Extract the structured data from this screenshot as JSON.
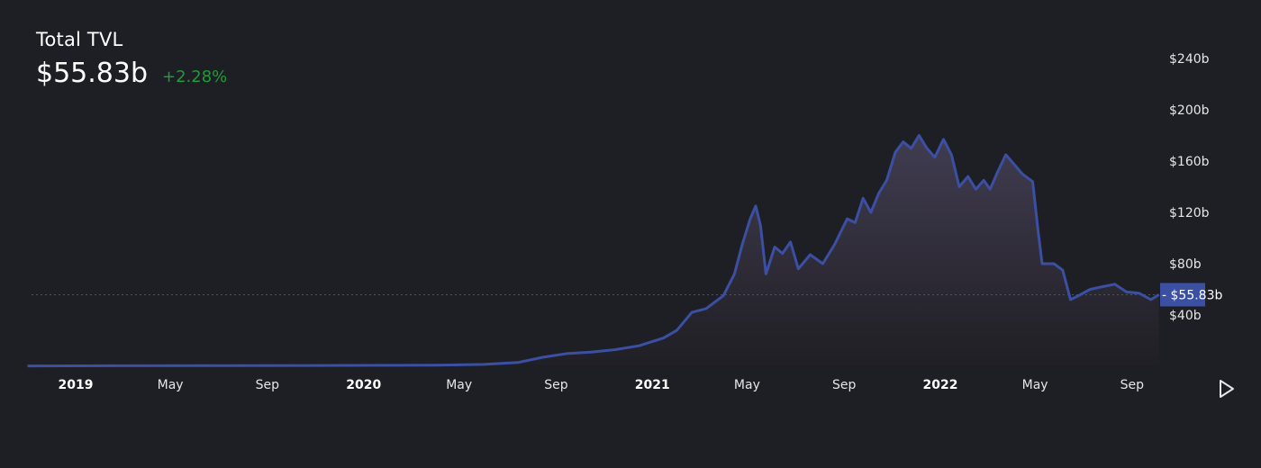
{
  "header": {
    "title": "Total TVL",
    "value": "$55.83b",
    "change": "+2.28%"
  },
  "colors": {
    "background": "#1e1f24",
    "line": "#3b4fa3",
    "change_positive": "#1e9b3a",
    "current_marker": "#3b4fa3"
  },
  "controls": {
    "play_icon": "play-triangle-icon"
  },
  "chart_data": {
    "type": "area",
    "title": "Total TVL",
    "xlabel": "",
    "ylabel": "",
    "ylim": [
      0,
      260
    ],
    "y_unit": "billion USD",
    "ytick_values": [
      40,
      80,
      120,
      160,
      200,
      240
    ],
    "ytick_labels": [
      "$40b",
      "$80b",
      "$120b",
      "$160b",
      "$200b",
      "$240b"
    ],
    "xtick_values": [
      "2019-01-01",
      "2019-05-01",
      "2019-09-01",
      "2020-01-01",
      "2020-05-01",
      "2020-09-01",
      "2021-01-01",
      "2021-05-01",
      "2021-09-01",
      "2022-01-01",
      "2022-05-01",
      "2022-09-01"
    ],
    "xtick_labels": [
      "2019",
      "May",
      "Sep",
      "2020",
      "May",
      "Sep",
      "2021",
      "May",
      "Sep",
      "2022",
      "May",
      "Sep"
    ],
    "year_ticks": [
      "2019",
      "2020",
      "2021",
      "2022"
    ],
    "current_value": 55.83,
    "current_label": "$55.83b",
    "series": [
      {
        "points": [
          [
            "2018-11-01",
            0.3
          ],
          [
            "2019-03-01",
            0.4
          ],
          [
            "2019-07-01",
            0.5
          ],
          [
            "2019-11-01",
            0.6
          ],
          [
            "2020-02-01",
            0.8
          ],
          [
            "2020-04-01",
            0.9
          ],
          [
            "2020-06-01",
            1.5
          ],
          [
            "2020-07-15",
            3
          ],
          [
            "2020-08-15",
            7
          ],
          [
            "2020-09-15",
            10
          ],
          [
            "2020-10-15",
            11
          ],
          [
            "2020-11-15",
            13
          ],
          [
            "2020-12-15",
            16
          ],
          [
            "2021-01-15",
            22
          ],
          [
            "2021-02-01",
            28
          ],
          [
            "2021-02-20",
            42
          ],
          [
            "2021-03-10",
            45
          ],
          [
            "2021-04-01",
            55
          ],
          [
            "2021-04-15",
            72
          ],
          [
            "2021-04-25",
            95
          ],
          [
            "2021-05-05",
            115
          ],
          [
            "2021-05-12",
            125
          ],
          [
            "2021-05-18",
            110
          ],
          [
            "2021-05-25",
            72
          ],
          [
            "2021-06-05",
            93
          ],
          [
            "2021-06-15",
            88
          ],
          [
            "2021-06-25",
            97
          ],
          [
            "2021-07-05",
            76
          ],
          [
            "2021-07-20",
            87
          ],
          [
            "2021-08-05",
            80
          ],
          [
            "2021-08-20",
            95
          ],
          [
            "2021-09-05",
            115
          ],
          [
            "2021-09-15",
            112
          ],
          [
            "2021-09-25",
            131
          ],
          [
            "2021-10-05",
            120
          ],
          [
            "2021-10-15",
            135
          ],
          [
            "2021-10-25",
            145
          ],
          [
            "2021-11-05",
            167
          ],
          [
            "2021-11-15",
            175
          ],
          [
            "2021-11-25",
            170
          ],
          [
            "2021-12-05",
            180
          ],
          [
            "2021-12-15",
            170
          ],
          [
            "2021-12-25",
            163
          ],
          [
            "2022-01-05",
            177
          ],
          [
            "2022-01-15",
            165
          ],
          [
            "2022-01-25",
            140
          ],
          [
            "2022-02-05",
            148
          ],
          [
            "2022-02-15",
            138
          ],
          [
            "2022-02-25",
            145
          ],
          [
            "2022-03-05",
            138
          ],
          [
            "2022-03-15",
            152
          ],
          [
            "2022-03-25",
            165
          ],
          [
            "2022-04-01",
            160
          ],
          [
            "2022-04-15",
            150
          ],
          [
            "2022-04-28",
            144
          ],
          [
            "2022-05-05",
            105
          ],
          [
            "2022-05-10",
            80
          ],
          [
            "2022-05-25",
            80
          ],
          [
            "2022-06-05",
            75
          ],
          [
            "2022-06-15",
            52
          ],
          [
            "2022-06-25",
            55
          ],
          [
            "2022-07-10",
            60
          ],
          [
            "2022-07-25",
            62
          ],
          [
            "2022-08-10",
            64
          ],
          [
            "2022-08-25",
            58
          ],
          [
            "2022-09-10",
            57
          ],
          [
            "2022-09-25",
            52
          ],
          [
            "2022-10-05",
            55.83
          ]
        ]
      }
    ]
  }
}
